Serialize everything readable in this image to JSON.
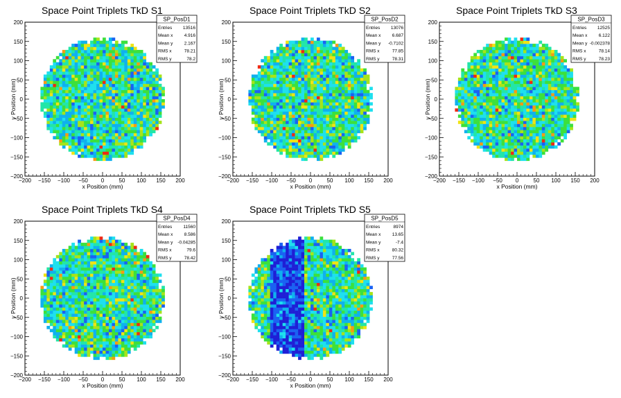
{
  "figure": {
    "background": "#ffffff",
    "colormap": [
      "#1f1fd6",
      "#1a62f2",
      "#0fb1ee",
      "#1ee0ee",
      "#22e6a8",
      "#3ce03c",
      "#a6e41a",
      "#efe414",
      "#f79a14",
      "#ee2a14"
    ]
  },
  "chart_data": [
    {
      "type": "heatmap",
      "title": "Space Point Triplets TkD S1",
      "xlabel": "x Position (mm)",
      "ylabel": "y Position (mm)",
      "xlim": [
        -200,
        200
      ],
      "ylim": [
        -200,
        200
      ],
      "xticks": [
        "−200",
        "−150",
        "−100",
        "−50",
        "0",
        "50",
        "100",
        "150",
        "200"
      ],
      "yticks": [
        "200",
        "150",
        "100",
        "50",
        "0",
        "−50",
        "−100",
        "−150",
        "−200"
      ],
      "distribution": {
        "radius": 160,
        "bin_size": 8,
        "seed": 11,
        "depleted_x_band": null
      },
      "stats": {
        "name": "SP_PosD1",
        "rows": [
          {
            "label": "Entries",
            "value": "13516"
          },
          {
            "label": "Mean x",
            "value": "4.916"
          },
          {
            "label": "Mean y",
            "value": "2.167"
          },
          {
            "label": "RMS x",
            "value": "78.21"
          },
          {
            "label": "RMS y",
            "value": "78.2"
          }
        ]
      }
    },
    {
      "type": "heatmap",
      "title": "Space Point Triplets TkD S2",
      "xlabel": "x Position (mm)",
      "ylabel": "y Position (mm)",
      "xlim": [
        -200,
        200
      ],
      "ylim": [
        -200,
        200
      ],
      "xticks": [
        "−200",
        "−150",
        "−100",
        "−50",
        "0",
        "50",
        "100",
        "150",
        "200"
      ],
      "yticks": [
        "200",
        "150",
        "100",
        "50",
        "0",
        "−50",
        "−100",
        "−150",
        "−200"
      ],
      "distribution": {
        "radius": 160,
        "bin_size": 8,
        "seed": 23,
        "depleted_x_band": null
      },
      "stats": {
        "name": "SP_PosD2",
        "rows": [
          {
            "label": "Entries",
            "value": "13076"
          },
          {
            "label": "Mean x",
            "value": "6.687"
          },
          {
            "label": "Mean y",
            "value": "-0.7102"
          },
          {
            "label": "RMS x",
            "value": "77.85"
          },
          {
            "label": "RMS y",
            "value": "78.31"
          }
        ]
      }
    },
    {
      "type": "heatmap",
      "title": "Space Point Triplets TkD S3",
      "xlabel": "x Position (mm)",
      "ylabel": "y Position (mm)",
      "xlim": [
        -200,
        200
      ],
      "ylim": [
        -200,
        200
      ],
      "xticks": [
        "−200",
        "−150",
        "−100",
        "−50",
        "0",
        "50",
        "100",
        "150",
        "200"
      ],
      "yticks": [
        "200",
        "150",
        "100",
        "50",
        "0",
        "−50",
        "−100",
        "−150",
        "−200"
      ],
      "distribution": {
        "radius": 160,
        "bin_size": 8,
        "seed": 37,
        "depleted_x_band": null
      },
      "stats": {
        "name": "SP_PosD3",
        "rows": [
          {
            "label": "Entries",
            "value": "12525"
          },
          {
            "label": "Mean x",
            "value": "6.122"
          },
          {
            "label": "Mean y",
            "value": "-0.002378"
          },
          {
            "label": "RMS x",
            "value": "78.14"
          },
          {
            "label": "RMS y",
            "value": "78.23"
          }
        ]
      }
    },
    {
      "type": "heatmap",
      "title": "Space Point Triplets TkD S4",
      "xlabel": "x Position (mm)",
      "ylabel": "y Position (mm)",
      "xlim": [
        -200,
        200
      ],
      "ylim": [
        -200,
        200
      ],
      "xticks": [
        "−200",
        "−150",
        "−100",
        "−50",
        "0",
        "50",
        "100",
        "150",
        "200"
      ],
      "yticks": [
        "200",
        "150",
        "100",
        "50",
        "0",
        "−50",
        "−100",
        "−150",
        "−200"
      ],
      "distribution": {
        "radius": 160,
        "bin_size": 8,
        "seed": 53,
        "depleted_x_band": null
      },
      "stats": {
        "name": "SP_PosD4",
        "rows": [
          {
            "label": "Entries",
            "value": "11560"
          },
          {
            "label": "Mean x",
            "value": "8.586"
          },
          {
            "label": "Mean y",
            "value": "-0.04285"
          },
          {
            "label": "RMS x",
            "value": "79.6"
          },
          {
            "label": "RMS y",
            "value": "78.42"
          }
        ]
      }
    },
    {
      "type": "heatmap",
      "title": "Space Point Triplets TkD S5",
      "xlabel": "x Position (mm)",
      "ylabel": "y Position (mm)",
      "xlim": [
        -200,
        200
      ],
      "ylim": [
        -200,
        200
      ],
      "xticks": [
        "−200",
        "−150",
        "−100",
        "−50",
        "0",
        "50",
        "100",
        "150",
        "200"
      ],
      "yticks": [
        "200",
        "150",
        "100",
        "50",
        "0",
        "−50",
        "−100",
        "−150",
        "−200"
      ],
      "distribution": {
        "radius": 160,
        "bin_size": 8,
        "seed": 71,
        "depleted_x_band": [
          -100,
          -20
        ]
      },
      "stats": {
        "name": "SP_PosD5",
        "rows": [
          {
            "label": "Entries",
            "value": "8974"
          },
          {
            "label": "Mean x",
            "value": "13.65"
          },
          {
            "label": "Mean y",
            "value": "-7.4"
          },
          {
            "label": "RMS x",
            "value": "80.32"
          },
          {
            "label": "RMS y",
            "value": "77.56"
          }
        ]
      }
    }
  ]
}
